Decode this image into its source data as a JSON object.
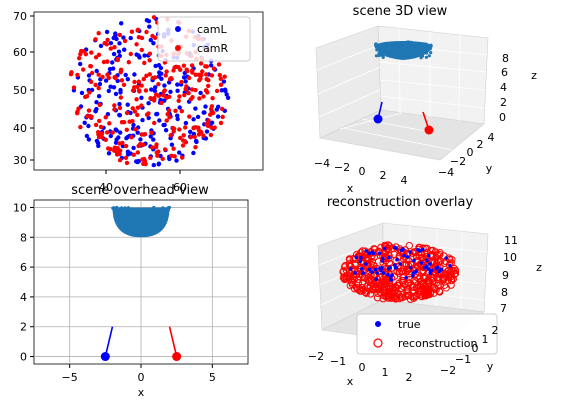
{
  "chart_data": [
    {
      "type": "scatter",
      "xlim": [
        20,
        80
      ],
      "ylim": [
        28,
        72
      ],
      "x_ticks": [
        "40",
        "60"
      ],
      "y_ticks": [
        "30",
        "40",
        "50",
        "60",
        "70"
      ],
      "legend": {
        "placement": "top-right",
        "entries": [
          "camL",
          "camR"
        ]
      },
      "series": [
        {
          "name": "camL",
          "color": "#0000ff",
          "center": [
            50,
            50
          ],
          "radius": 21,
          "count": 260
        },
        {
          "name": "camR",
          "color": "#ff0000",
          "center": [
            50,
            50
          ],
          "radius": 21,
          "count": 300
        }
      ]
    },
    {
      "type": "scatter",
      "title": "scene 3D view",
      "xlabel": "x",
      "ylabel": "y",
      "zlabel": "z",
      "x_ticks": [
        "−4",
        "−2",
        "0",
        "2",
        "4"
      ],
      "y_ticks": [
        "−4",
        "−2",
        "0",
        "2",
        "4"
      ],
      "z_ticks": [
        "0",
        "2",
        "4",
        "6",
        "8"
      ],
      "points_color": "#1f77b4",
      "cameras": [
        {
          "name": "camL",
          "color": "#0000ff"
        },
        {
          "name": "camR",
          "color": "#ff0000"
        }
      ]
    },
    {
      "type": "scatter",
      "title": "scene overhead view",
      "xlabel": "x",
      "xlim": [
        -7.5,
        7.5
      ],
      "ylim": [
        -0.5,
        10.5
      ],
      "grid": true,
      "x_ticks": [
        -5,
        0,
        5
      ],
      "y_ticks": [
        0,
        2,
        4,
        6,
        8,
        10
      ],
      "points_color": "#1f77b4",
      "scene_cap": {
        "center_x": 0,
        "min_y": 8,
        "max_y": 10,
        "half_width": 2
      },
      "cameras": [
        {
          "name": "camL",
          "color": "#0000ff",
          "pos": [
            -2.5,
            0
          ],
          "dir_end": [
            -2.0,
            2.0
          ]
        },
        {
          "name": "camR",
          "color": "#ff0000",
          "pos": [
            2.5,
            0
          ],
          "dir_end": [
            2.0,
            2.0
          ]
        }
      ]
    },
    {
      "type": "scatter",
      "title": "reconstruction overlay",
      "xlabel": "x",
      "ylabel": "y",
      "zlabel": "z",
      "x_ticks": [
        "−2",
        "−1",
        "0",
        "1",
        "2"
      ],
      "y_ticks": [
        "−2",
        "−1",
        "0",
        "1",
        "2"
      ],
      "z_ticks": [
        "7",
        "8",
        "9",
        "10",
        "11"
      ],
      "legend": {
        "placement": "lower-center",
        "entries": [
          "true",
          "reconstruction"
        ]
      },
      "series": [
        {
          "name": "true",
          "color": "#0000ff",
          "marker": "dot"
        },
        {
          "name": "reconstruction",
          "color": "#ff0000",
          "marker": "open-circle"
        }
      ]
    }
  ]
}
